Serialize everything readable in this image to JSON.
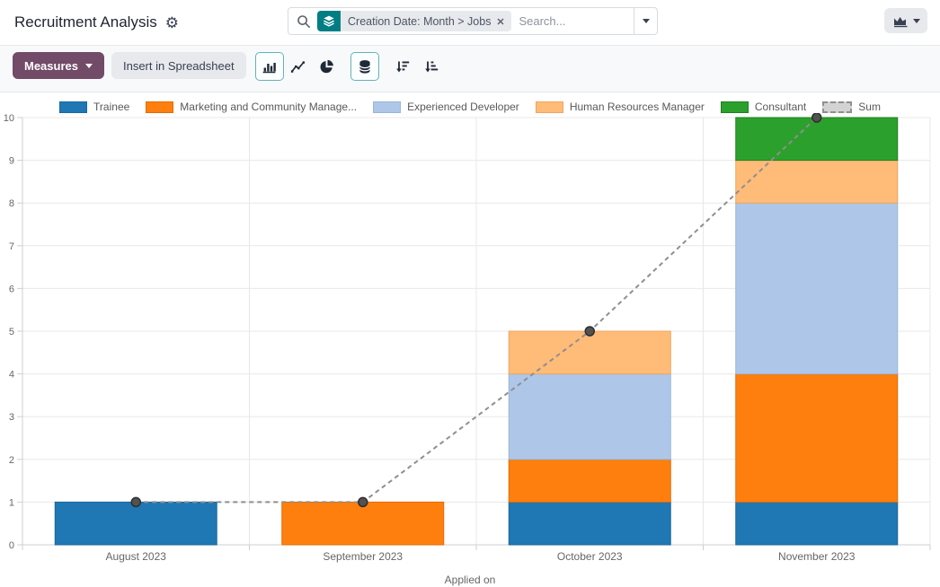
{
  "header": {
    "title": "Recruitment Analysis",
    "gear_glyph": "⚙",
    "search": {
      "facet_label": "Creation Date: Month > Jobs",
      "placeholder": "Search..."
    }
  },
  "toolbar": {
    "measures_label": "Measures",
    "insert_label": "Insert in Spreadsheet"
  },
  "chart_data": {
    "type": "bar",
    "stacked": true,
    "title": "",
    "xlabel": "Applied on",
    "ylabel": "",
    "ylim": [
      0,
      10
    ],
    "yticks": [
      0,
      1,
      2,
      3,
      4,
      5,
      6,
      7,
      8,
      9,
      10
    ],
    "grid": true,
    "legend_position": "top",
    "categories": [
      "August 2023",
      "September 2023",
      "October 2023",
      "November 2023"
    ],
    "series": [
      {
        "name": "Trainee",
        "color": "#1f77b4",
        "border": "#1b689e",
        "values": [
          1,
          0,
          1,
          1
        ]
      },
      {
        "name": "Marketing and Community Manage...",
        "color": "#ff7f0e",
        "border": "#e06d06",
        "values": [
          0,
          1,
          1,
          3
        ]
      },
      {
        "name": "Experienced Developer",
        "color": "#aec7e8",
        "border": "#97b6da",
        "values": [
          0,
          0,
          2,
          4
        ]
      },
      {
        "name": "Human Resources Manager",
        "color": "#ffbb78",
        "border": "#efa55c",
        "values": [
          0,
          0,
          1,
          1
        ]
      },
      {
        "name": "Consultant",
        "color": "#2ca02c",
        "border": "#217f21",
        "values": [
          0,
          0,
          0,
          1
        ]
      }
    ],
    "line_series": {
      "name": "Sum",
      "color": "#8f8f8f",
      "marker_fill": "#525252",
      "marker_stroke": "#2f2f2f",
      "values": [
        1,
        1,
        5,
        10
      ]
    }
  }
}
